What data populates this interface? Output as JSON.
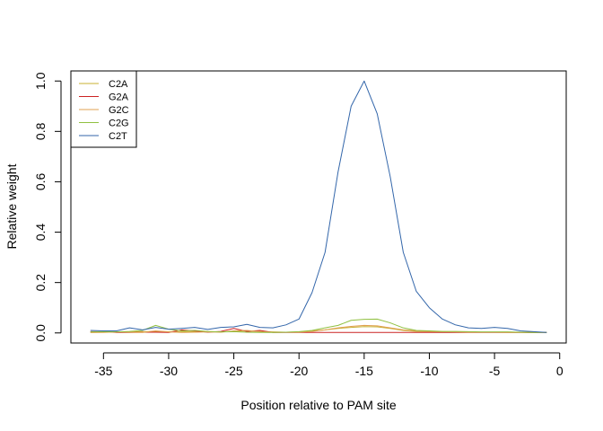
{
  "chart_data": {
    "type": "line",
    "title": "",
    "xlabel": "Position relative to PAM site",
    "ylabel": "Relative weight",
    "xlim": [
      -37.5,
      0.5
    ],
    "ylim": [
      -0.04,
      1.04
    ],
    "xticks": [
      -35,
      -30,
      -25,
      -20,
      -15,
      -10,
      -5,
      0
    ],
    "yticks": [
      0.0,
      0.2,
      0.4,
      0.6,
      0.8,
      1.0
    ],
    "xtick_labels": [
      "-35",
      "-30",
      "-25",
      "-20",
      "-15",
      "-10",
      "-5",
      "0"
    ],
    "ytick_labels": [
      "0.0",
      "0.2",
      "0.4",
      "0.6",
      "0.8",
      "1.0"
    ],
    "grid": false,
    "legend_position": "top-left",
    "x": [
      -36,
      -35,
      -34,
      -33,
      -32,
      -31,
      -30,
      -29,
      -28,
      -27,
      -26,
      -25,
      -24,
      -23,
      -22,
      -21,
      -20,
      -19,
      -18,
      -17,
      -16,
      -15,
      -14,
      -13,
      -12,
      -11,
      -10,
      -9,
      -8,
      -7,
      -6,
      -5,
      -4,
      -3,
      -2,
      -1
    ],
    "series": [
      {
        "name": "C2A",
        "color": "#c8b030",
        "values": [
          0.002,
          0.003,
          0.003,
          0.004,
          0.005,
          0.006,
          0.005,
          0.004,
          0.006,
          0.005,
          0.004,
          0.006,
          0.008,
          0.006,
          0.004,
          0.003,
          0.004,
          0.008,
          0.012,
          0.018,
          0.022,
          0.025,
          0.024,
          0.018,
          0.01,
          0.006,
          0.005,
          0.004,
          0.004,
          0.003,
          0.003,
          0.003,
          0.003,
          0.002,
          0.002,
          0.002
        ]
      },
      {
        "name": "G2A",
        "color": "#cc2222",
        "values": [
          0.005,
          0.005,
          0.002,
          0.002,
          0.003,
          0.003,
          0.002,
          0.012,
          0.008,
          0.003,
          0.006,
          0.018,
          0.006,
          0.01,
          0.002,
          0.002,
          0.002,
          0.002,
          0.002,
          0.002,
          0.002,
          0.002,
          0.002,
          0.002,
          0.002,
          0.002,
          0.002,
          0.002,
          0.002,
          0.002,
          0.002,
          0.002,
          0.002,
          0.002,
          0.002,
          0.002
        ]
      },
      {
        "name": "G2C",
        "color": "#e0a050",
        "values": [
          0.002,
          0.002,
          0.004,
          0.003,
          0.002,
          0.008,
          0.004,
          0.002,
          0.003,
          0.004,
          0.003,
          0.008,
          0.01,
          0.005,
          0.003,
          0.003,
          0.003,
          0.006,
          0.012,
          0.02,
          0.026,
          0.03,
          0.028,
          0.02,
          0.012,
          0.008,
          0.006,
          0.005,
          0.004,
          0.003,
          0.003,
          0.003,
          0.002,
          0.002,
          0.002,
          0.002
        ]
      },
      {
        "name": "C2G",
        "color": "#90c040",
        "values": [
          0.004,
          0.005,
          0.004,
          0.006,
          0.01,
          0.03,
          0.015,
          0.008,
          0.01,
          0.006,
          0.004,
          0.005,
          0.003,
          0.002,
          0.002,
          0.003,
          0.005,
          0.01,
          0.02,
          0.03,
          0.05,
          0.054,
          0.055,
          0.04,
          0.02,
          0.01,
          0.008,
          0.006,
          0.006,
          0.005,
          0.004,
          0.004,
          0.004,
          0.003,
          0.002,
          0.002
        ]
      },
      {
        "name": "C2T",
        "color": "#3366aa",
        "values": [
          0.01,
          0.008,
          0.008,
          0.02,
          0.012,
          0.022,
          0.015,
          0.018,
          0.022,
          0.014,
          0.022,
          0.024,
          0.034,
          0.022,
          0.02,
          0.032,
          0.055,
          0.16,
          0.32,
          0.64,
          0.9,
          1.0,
          0.87,
          0.62,
          0.32,
          0.165,
          0.1,
          0.055,
          0.032,
          0.02,
          0.018,
          0.022,
          0.018,
          0.008,
          0.005,
          0.002
        ]
      }
    ]
  }
}
